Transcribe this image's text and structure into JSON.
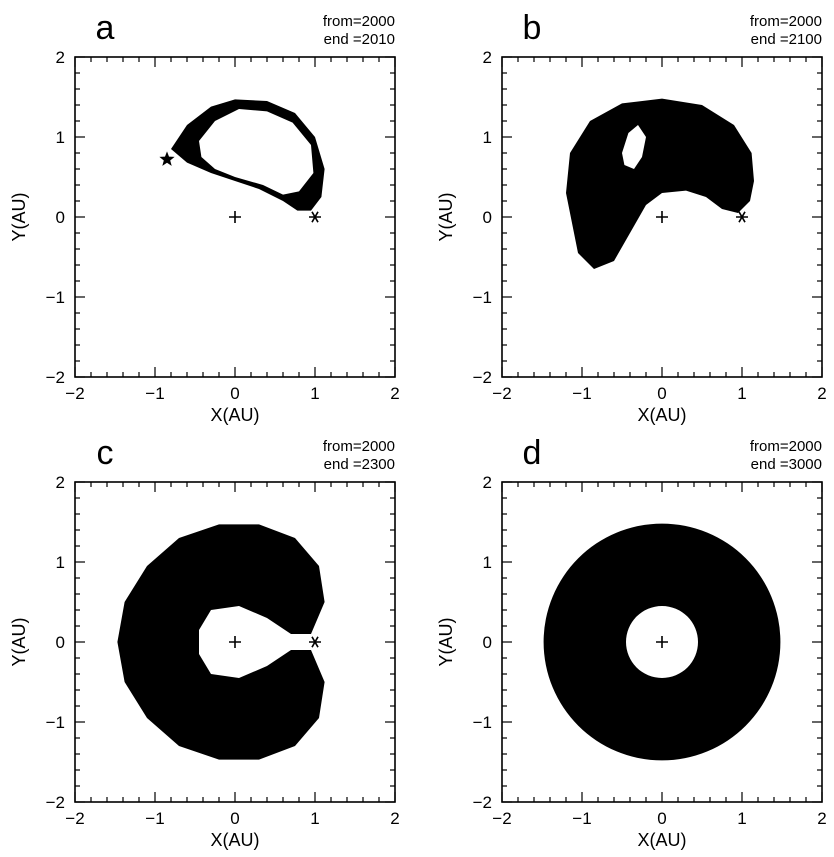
{
  "figure": {
    "panels": [
      {
        "letter": "a",
        "from_label": "from=2000",
        "end_label": "end =2010"
      },
      {
        "letter": "b",
        "from_label": "from=2000",
        "end_label": "end =2100"
      },
      {
        "letter": "c",
        "from_label": "from=2000",
        "end_label": "end =2300"
      },
      {
        "letter": "d",
        "from_label": "from=2000",
        "end_label": "end =3000"
      }
    ]
  },
  "chart_data": [
    {
      "type": "scatter",
      "panel": "a",
      "xlabel": "X(AU)",
      "ylabel": "Y(AU)",
      "xlim": [
        -2,
        2
      ],
      "ylim": [
        -2,
        2
      ],
      "xticks": [
        "-2",
        "-1",
        "0",
        "1",
        "2"
      ],
      "yticks": [
        "-2",
        "-1",
        "0",
        "1",
        "2"
      ],
      "markers": [
        {
          "symbol": "+",
          "x": 0,
          "y": 0
        },
        {
          "symbol": "*",
          "x": 1.0,
          "y": 0.0
        },
        {
          "symbol": "star",
          "x": -0.85,
          "y": 0.72
        }
      ],
      "region": {
        "shape": "horseshoe-arc",
        "outer": [
          [
            -0.8,
            0.85
          ],
          [
            -0.6,
            1.15
          ],
          [
            -0.3,
            1.38
          ],
          [
            0.0,
            1.47
          ],
          [
            0.4,
            1.45
          ],
          [
            0.75,
            1.3
          ],
          [
            1.0,
            1.0
          ],
          [
            1.12,
            0.6
          ],
          [
            1.08,
            0.25
          ],
          [
            0.95,
            0.08
          ],
          [
            0.78,
            0.08
          ],
          [
            0.6,
            0.2
          ],
          [
            0.3,
            0.35
          ],
          [
            0.0,
            0.45
          ],
          [
            -0.3,
            0.55
          ],
          [
            -0.6,
            0.68
          ]
        ],
        "hole": [
          [
            -0.45,
            0.95
          ],
          [
            -0.25,
            1.2
          ],
          [
            0.05,
            1.35
          ],
          [
            0.4,
            1.32
          ],
          [
            0.72,
            1.18
          ],
          [
            0.95,
            0.9
          ],
          [
            0.98,
            0.55
          ],
          [
            0.8,
            0.32
          ],
          [
            0.6,
            0.28
          ],
          [
            0.35,
            0.4
          ],
          [
            0.0,
            0.5
          ],
          [
            -0.25,
            0.6
          ],
          [
            -0.42,
            0.75
          ]
        ]
      }
    },
    {
      "type": "scatter",
      "panel": "b",
      "xlabel": "X(AU)",
      "ylabel": "Y(AU)",
      "xlim": [
        -2,
        2
      ],
      "ylim": [
        -2,
        2
      ],
      "xticks": [
        "-2",
        "-1",
        "0",
        "1",
        "2"
      ],
      "yticks": [
        "-2",
        "-1",
        "0",
        "1",
        "2"
      ],
      "markers": [
        {
          "symbol": "+",
          "x": 0,
          "y": 0
        },
        {
          "symbol": "*",
          "x": 1.0,
          "y": 0.0
        }
      ],
      "region": {
        "shape": "horseshoe",
        "outer": [
          [
            -1.2,
            0.3
          ],
          [
            -1.15,
            0.8
          ],
          [
            -0.9,
            1.2
          ],
          [
            -0.5,
            1.42
          ],
          [
            0.0,
            1.48
          ],
          [
            0.5,
            1.4
          ],
          [
            0.9,
            1.15
          ],
          [
            1.12,
            0.8
          ],
          [
            1.15,
            0.45
          ],
          [
            1.1,
            0.2
          ],
          [
            0.95,
            0.05
          ],
          [
            0.75,
            0.1
          ],
          [
            0.55,
            0.25
          ],
          [
            0.3,
            0.33
          ],
          [
            0.0,
            0.3
          ],
          [
            -0.2,
            0.15
          ],
          [
            -0.4,
            -0.2
          ],
          [
            -0.6,
            -0.55
          ],
          [
            -0.85,
            -0.65
          ],
          [
            -1.05,
            -0.45
          ]
        ],
        "hole": [
          [
            -0.5,
            0.8
          ],
          [
            -0.42,
            1.05
          ],
          [
            -0.3,
            1.15
          ],
          [
            -0.2,
            1.0
          ],
          [
            -0.25,
            0.75
          ],
          [
            -0.35,
            0.6
          ],
          [
            -0.47,
            0.65
          ]
        ]
      }
    },
    {
      "type": "scatter",
      "panel": "c",
      "xlabel": "X(AU)",
      "ylabel": "Y(AU)",
      "xlim": [
        -2,
        2
      ],
      "ylim": [
        -2,
        2
      ],
      "xticks": [
        "-2",
        "-1",
        "0",
        "1",
        "2"
      ],
      "yticks": [
        "-2",
        "-1",
        "0",
        "1",
        "2"
      ],
      "markers": [
        {
          "symbol": "+",
          "x": 0,
          "y": 0
        },
        {
          "symbol": "*",
          "x": 1.0,
          "y": 0.0
        }
      ],
      "region": {
        "shape": "horseshoe-open",
        "outer": [
          [
            0.95,
            0.1
          ],
          [
            1.12,
            0.5
          ],
          [
            1.05,
            0.95
          ],
          [
            0.75,
            1.3
          ],
          [
            0.3,
            1.47
          ],
          [
            -0.2,
            1.47
          ],
          [
            -0.7,
            1.3
          ],
          [
            -1.1,
            0.95
          ],
          [
            -1.38,
            0.5
          ],
          [
            -1.47,
            0.0
          ],
          [
            -1.38,
            -0.5
          ],
          [
            -1.1,
            -0.95
          ],
          [
            -0.7,
            -1.3
          ],
          [
            -0.2,
            -1.47
          ],
          [
            0.3,
            -1.47
          ],
          [
            0.75,
            -1.3
          ],
          [
            1.05,
            -0.95
          ],
          [
            1.12,
            -0.5
          ],
          [
            0.95,
            -0.1
          ],
          [
            0.7,
            -0.1
          ],
          [
            0.4,
            -0.3
          ],
          [
            0.05,
            -0.45
          ],
          [
            -0.3,
            -0.4
          ],
          [
            -0.45,
            -0.15
          ],
          [
            -0.45,
            0.15
          ],
          [
            -0.3,
            0.4
          ],
          [
            0.05,
            0.45
          ],
          [
            0.4,
            0.3
          ],
          [
            0.7,
            0.1
          ]
        ]
      }
    },
    {
      "type": "scatter",
      "panel": "d",
      "xlabel": "X(AU)",
      "ylabel": "Y(AU)",
      "xlim": [
        -2,
        2
      ],
      "ylim": [
        -2,
        2
      ],
      "xticks": [
        "-2",
        "-1",
        "0",
        "1",
        "2"
      ],
      "yticks": [
        "-2",
        "-1",
        "0",
        "1",
        "2"
      ],
      "markers": [
        {
          "symbol": "+",
          "x": 0,
          "y": 0
        }
      ],
      "region": {
        "shape": "annulus",
        "r_outer": 1.48,
        "r_inner": 0.45
      }
    }
  ]
}
